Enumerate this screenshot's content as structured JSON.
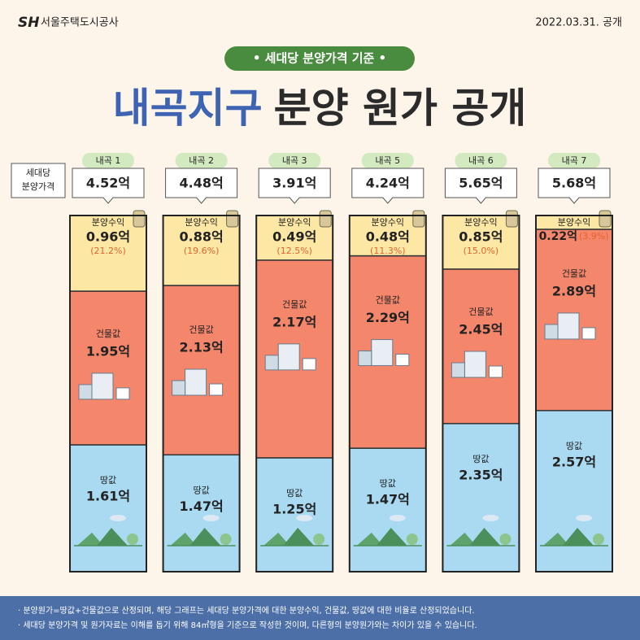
{
  "header": {
    "logo_mark": "SH",
    "logo": "서울주택도시공사",
    "date": "2022.03.31. 공개"
  },
  "badge": "• 세대당 분양가격 기준 •",
  "title": {
    "highlight": "내곡지구",
    "rest": "분양 원가 공개"
  },
  "chart_data": {
    "type": "bar",
    "stacked": true,
    "normalized": true,
    "total_label": [
      "세대당",
      "분양가격"
    ],
    "categories": [
      "내곡 1",
      "내곡 2",
      "내곡 3",
      "내곡 5",
      "내곡 6",
      "내곡 7"
    ],
    "totals": [
      4.52,
      4.48,
      3.91,
      4.24,
      5.65,
      5.68
    ],
    "total_labels": [
      "4.52억",
      "4.48억",
      "3.91억",
      "4.24억",
      "5.65억",
      "5.68억"
    ],
    "series": [
      {
        "name": "땅값",
        "color": "#a9daf2",
        "values": [
          1.61,
          1.47,
          1.25,
          1.47,
          2.35,
          2.57
        ],
        "value_labels": [
          "1.61억",
          "1.47억",
          "1.25억",
          "1.47억",
          "2.35억",
          "2.57억"
        ]
      },
      {
        "name": "건물값",
        "color": "#f4866b",
        "values": [
          1.95,
          2.13,
          2.17,
          2.29,
          2.45,
          2.89
        ],
        "value_labels": [
          "1.95억",
          "2.13억",
          "2.17억",
          "2.29억",
          "2.45억",
          "2.89억"
        ]
      },
      {
        "name": "분양수익",
        "color": "#fde7a4",
        "values": [
          0.96,
          0.88,
          0.49,
          0.48,
          0.85,
          0.22
        ],
        "value_labels": [
          "0.96억",
          "0.88억",
          "0.49억",
          "0.48억",
          "0.85억",
          "0.22억"
        ],
        "share_labels": [
          "(21.2%)",
          "(19.6%)",
          "(12.5%)",
          "(11.3%)",
          "(15.0%)",
          "(3.9%)"
        ]
      }
    ]
  },
  "notes": [
    "· 분양원가=땅값+건물값으로 산정되며, 해당 그래프는 세대당 분양가격에 대한 분양수익, 건물값, 땅값에 대한 비율로 산정되었습니다.",
    "· 세대당 분양가격 및 원가자료는 이해를 돕기 위해 84㎡형을 기준으로 작성한 것이며, 다른형의 분양원가와는 차이가 있을 수 있습니다."
  ]
}
